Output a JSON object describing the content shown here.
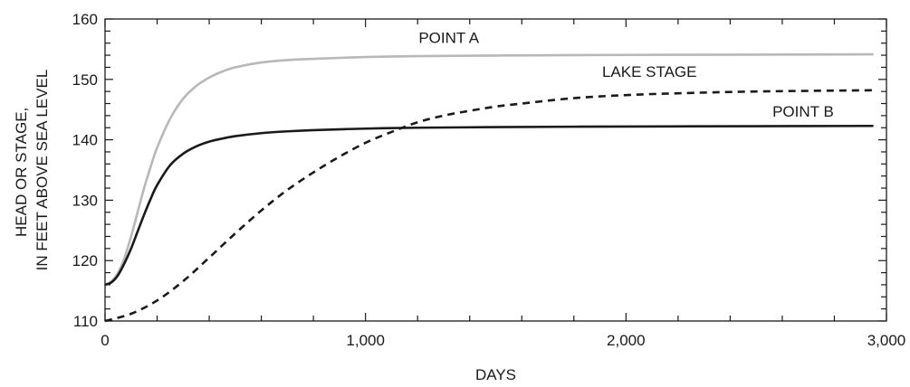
{
  "chart_data": {
    "type": "line",
    "xlabel": "DAYS",
    "ylabel_lines": [
      "HEAD OR STAGE,",
      "IN FEET ABOVE SEA LEVEL"
    ],
    "xlim": [
      0,
      3000
    ],
    "ylim": [
      110,
      160
    ],
    "x_ticks": [
      {
        "value": 0,
        "label": "0"
      },
      {
        "value": 1000,
        "label": "1,000"
      },
      {
        "value": 2000,
        "label": "2,000"
      },
      {
        "value": 3000,
        "label": "3,000"
      }
    ],
    "x_minor_step": 200,
    "y_ticks": [
      {
        "value": 110,
        "label": "110"
      },
      {
        "value": 120,
        "label": "120"
      },
      {
        "value": 130,
        "label": "130"
      },
      {
        "value": 140,
        "label": "140"
      },
      {
        "value": 150,
        "label": "150"
      },
      {
        "value": 160,
        "label": "160"
      }
    ],
    "y_minor_step": 2,
    "grid": false,
    "legend": "none (series labelled directly on the lines)",
    "series": [
      {
        "name": "POINT A",
        "color": "#b8b8b8",
        "dash": "solid",
        "label_at": {
          "x": 1320,
          "y": 156.0
        },
        "points": [
          [
            0,
            116
          ],
          [
            25,
            116.6
          ],
          [
            50,
            118
          ],
          [
            75,
            120.5
          ],
          [
            100,
            124
          ],
          [
            125,
            128
          ],
          [
            150,
            132
          ],
          [
            175,
            135.5
          ],
          [
            200,
            138.7
          ],
          [
            250,
            143.5
          ],
          [
            300,
            146.8
          ],
          [
            350,
            148.9
          ],
          [
            400,
            150.3
          ],
          [
            450,
            151.3
          ],
          [
            500,
            152
          ],
          [
            600,
            152.8
          ],
          [
            700,
            153.2
          ],
          [
            800,
            153.4
          ],
          [
            1000,
            153.7
          ],
          [
            1200,
            153.85
          ],
          [
            1500,
            153.95
          ],
          [
            2000,
            154.05
          ],
          [
            2500,
            154.1
          ],
          [
            2950,
            154.15
          ]
        ]
      },
      {
        "name": "LAKE STAGE",
        "color": "#1a1a1a",
        "dash": "8,6",
        "label_at": {
          "x": 2090,
          "y": 150.4
        },
        "points": [
          [
            0,
            110
          ],
          [
            100,
            111.2
          ],
          [
            200,
            113.4
          ],
          [
            300,
            116.6
          ],
          [
            400,
            120.5
          ],
          [
            500,
            124.5
          ],
          [
            600,
            128.3
          ],
          [
            700,
            131.7
          ],
          [
            800,
            134.6
          ],
          [
            900,
            137.2
          ],
          [
            1000,
            139.5
          ],
          [
            1100,
            141.3
          ],
          [
            1200,
            142.9
          ],
          [
            1300,
            144
          ],
          [
            1400,
            144.8
          ],
          [
            1500,
            145.5
          ],
          [
            1600,
            146
          ],
          [
            1800,
            146.9
          ],
          [
            2000,
            147.4
          ],
          [
            2200,
            147.7
          ],
          [
            2500,
            148
          ],
          [
            2950,
            148.2
          ]
        ]
      },
      {
        "name": "POINT B",
        "color": "#1a1a1a",
        "dash": "solid",
        "label_at": {
          "x": 2680,
          "y": 143.8
        },
        "points": [
          [
            0,
            116
          ],
          [
            25,
            116.4
          ],
          [
            50,
            117.6
          ],
          [
            75,
            119.6
          ],
          [
            100,
            122
          ],
          [
            125,
            124.8
          ],
          [
            150,
            127.6
          ],
          [
            175,
            130.2
          ],
          [
            200,
            132.5
          ],
          [
            250,
            135.8
          ],
          [
            300,
            137.7
          ],
          [
            350,
            138.9
          ],
          [
            400,
            139.7
          ],
          [
            450,
            140.2
          ],
          [
            500,
            140.6
          ],
          [
            600,
            141.1
          ],
          [
            700,
            141.4
          ],
          [
            800,
            141.6
          ],
          [
            1000,
            141.85
          ],
          [
            1200,
            142
          ],
          [
            1500,
            142.1
          ],
          [
            2000,
            142.2
          ],
          [
            2500,
            142.25
          ],
          [
            2950,
            142.3
          ]
        ]
      }
    ]
  }
}
